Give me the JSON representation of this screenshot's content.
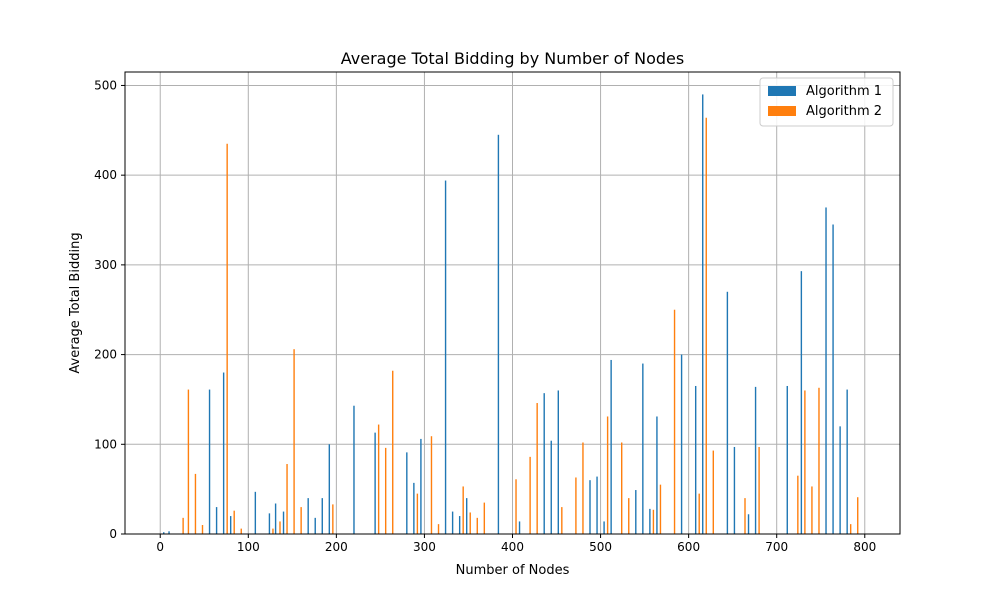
{
  "chart_data": {
    "type": "bar",
    "title": "Average Total Bidding by Number of Nodes",
    "xlabel": "Number of Nodes",
    "ylabel": "Average Total Bidding",
    "xlim": [
      -40,
      840
    ],
    "ylim": [
      0,
      515
    ],
    "xticks": [
      0,
      100,
      200,
      300,
      400,
      500,
      600,
      700,
      800
    ],
    "yticks": [
      0,
      100,
      200,
      300,
      400,
      500
    ],
    "grid": true,
    "legend_position": "top-right",
    "series": [
      {
        "name": "Algorithm 1",
        "color": "#1f77b4",
        "points": [
          [
            4,
            2
          ],
          [
            10,
            3
          ],
          [
            56,
            161
          ],
          [
            64,
            30
          ],
          [
            72,
            180
          ],
          [
            80,
            20
          ],
          [
            108,
            47
          ],
          [
            124,
            23
          ],
          [
            131,
            34
          ],
          [
            140,
            25
          ],
          [
            168,
            40
          ],
          [
            176,
            18
          ],
          [
            184,
            40
          ],
          [
            192,
            100
          ],
          [
            220,
            143
          ],
          [
            244,
            113
          ],
          [
            280,
            91
          ],
          [
            288,
            57
          ],
          [
            296,
            106
          ],
          [
            324,
            394
          ],
          [
            332,
            25
          ],
          [
            340,
            20
          ],
          [
            348,
            40
          ],
          [
            384,
            445
          ],
          [
            408,
            14
          ],
          [
            436,
            157
          ],
          [
            444,
            104
          ],
          [
            452,
            160
          ],
          [
            488,
            60
          ],
          [
            496,
            64
          ],
          [
            504,
            14
          ],
          [
            512,
            194
          ],
          [
            540,
            49
          ],
          [
            548,
            190
          ],
          [
            556,
            28
          ],
          [
            564,
            131
          ],
          [
            592,
            200
          ],
          [
            608,
            165
          ],
          [
            616,
            490
          ],
          [
            644,
            270
          ],
          [
            652,
            97
          ],
          [
            668,
            22
          ],
          [
            676,
            164
          ],
          [
            712,
            165
          ],
          [
            728,
            293
          ],
          [
            756,
            364
          ],
          [
            764,
            345
          ],
          [
            772,
            120
          ],
          [
            780,
            161
          ]
        ]
      },
      {
        "name": "Algorithm 2",
        "color": "#ff7f0e",
        "points": [
          [
            26,
            18
          ],
          [
            32,
            161
          ],
          [
            40,
            67
          ],
          [
            48,
            10
          ],
          [
            76,
            435
          ],
          [
            84,
            26
          ],
          [
            92,
            6
          ],
          [
            128,
            6
          ],
          [
            136,
            14
          ],
          [
            144,
            78
          ],
          [
            152,
            206
          ],
          [
            160,
            30
          ],
          [
            196,
            33
          ],
          [
            248,
            122
          ],
          [
            256,
            96
          ],
          [
            264,
            182
          ],
          [
            292,
            45
          ],
          [
            308,
            109
          ],
          [
            316,
            11
          ],
          [
            344,
            53
          ],
          [
            352,
            24
          ],
          [
            360,
            18
          ],
          [
            368,
            35
          ],
          [
            404,
            61
          ],
          [
            420,
            86
          ],
          [
            428,
            146
          ],
          [
            456,
            30
          ],
          [
            472,
            63
          ],
          [
            480,
            102
          ],
          [
            508,
            131
          ],
          [
            524,
            102
          ],
          [
            532,
            40
          ],
          [
            560,
            27
          ],
          [
            568,
            55
          ],
          [
            584,
            250
          ],
          [
            612,
            45
          ],
          [
            620,
            464
          ],
          [
            628,
            93
          ],
          [
            664,
            40
          ],
          [
            680,
            97
          ],
          [
            724,
            65
          ],
          [
            732,
            160
          ],
          [
            740,
            53
          ],
          [
            748,
            163
          ],
          [
            784,
            11
          ],
          [
            792,
            41
          ]
        ]
      }
    ]
  }
}
